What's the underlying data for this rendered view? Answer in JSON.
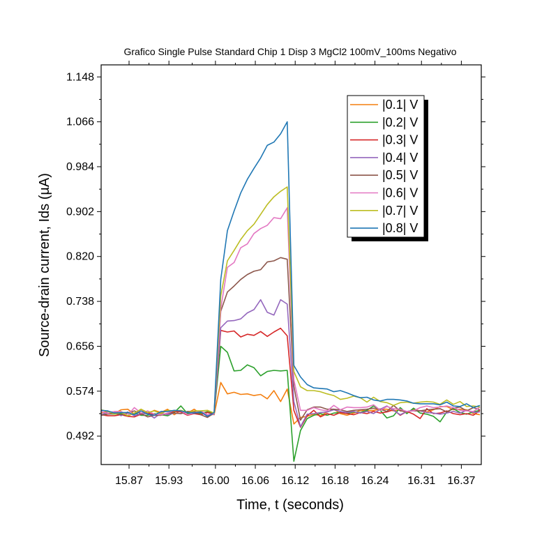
{
  "chart_data": {
    "type": "line",
    "title": "Grafico Single Pulse Standard Chip 1 Disp 3 MgCl2 100mV_100ms Negativo",
    "xlabel": "Time, t (seconds)",
    "ylabel": "Source-drain current, Ids (µA)",
    "xlim": [
      15.828,
      16.4
    ],
    "ylim": [
      0.44,
      1.17
    ],
    "xticks": [
      15.87,
      15.93,
      16.0,
      16.06,
      16.12,
      16.18,
      16.24,
      16.31,
      16.37
    ],
    "xtick_labels": [
      "15.87",
      "15.93",
      "16.00",
      "16.06",
      "16.12",
      "16.18",
      "16.24",
      "16.31",
      "16.37"
    ],
    "yticks": [
      0.492,
      0.574,
      0.656,
      0.738,
      0.82,
      0.902,
      0.984,
      1.066,
      1.148
    ],
    "ytick_labels": [
      "0.492",
      "0.574",
      "0.656",
      "0.738",
      "0.820",
      "0.902",
      "0.984",
      "1.066",
      "1.148"
    ],
    "grid": false,
    "legend_position": "top-right",
    "x": [
      15.828,
      15.838,
      15.848,
      15.858,
      15.868,
      15.878,
      15.888,
      15.898,
      15.908,
      15.918,
      15.928,
      15.938,
      15.948,
      15.958,
      15.968,
      15.978,
      15.988,
      15.998,
      16.008,
      16.018,
      16.028,
      16.038,
      16.048,
      16.058,
      16.068,
      16.078,
      16.088,
      16.098,
      16.108,
      16.118,
      16.128,
      16.138,
      16.148,
      16.158,
      16.168,
      16.178,
      16.188,
      16.198,
      16.208,
      16.218,
      16.228,
      16.238,
      16.248,
      16.258,
      16.268,
      16.278,
      16.288,
      16.298,
      16.308,
      16.318,
      16.328,
      16.338,
      16.348,
      16.358,
      16.368,
      16.378,
      16.388,
      16.398
    ],
    "series": [
      {
        "name": "|0.1| V",
        "color": "#f47f0f",
        "values": [
          0.534,
          0.538,
          0.533,
          0.54,
          0.541,
          0.532,
          0.541,
          0.533,
          0.539,
          0.535,
          0.541,
          0.531,
          0.539,
          0.534,
          0.541,
          0.532,
          0.537,
          0.531,
          0.59,
          0.569,
          0.572,
          0.568,
          0.569,
          0.566,
          0.568,
          0.56,
          0.575,
          0.555,
          0.578,
          0.514,
          0.526,
          0.528,
          0.532,
          0.529,
          0.536,
          0.541,
          0.533,
          0.53,
          0.534,
          0.539,
          0.538,
          0.539,
          0.541,
          0.541,
          0.538,
          0.54,
          0.534,
          0.541,
          0.538,
          0.536,
          0.54,
          0.546,
          0.546,
          0.54,
          0.541,
          0.54,
          0.533,
          0.531
        ]
      },
      {
        "name": "|0.2| V",
        "color": "#2ca02c",
        "values": [
          0.53,
          0.533,
          0.532,
          0.533,
          0.529,
          0.534,
          0.53,
          0.53,
          0.533,
          0.531,
          0.529,
          0.535,
          0.547,
          0.533,
          0.534,
          0.534,
          0.536,
          0.533,
          0.656,
          0.645,
          0.611,
          0.612,
          0.622,
          0.617,
          0.602,
          0.61,
          0.612,
          0.611,
          0.612,
          0.446,
          0.502,
          0.524,
          0.53,
          0.533,
          0.53,
          0.534,
          0.535,
          0.533,
          0.536,
          0.535,
          0.539,
          0.547,
          0.539,
          0.525,
          0.529,
          0.544,
          0.533,
          0.543,
          0.534,
          0.532,
          0.528,
          0.518,
          0.536,
          0.542,
          0.535,
          0.532,
          0.536,
          0.539
        ]
      },
      {
        "name": "|0.3| V",
        "color": "#d62728",
        "values": [
          0.531,
          0.529,
          0.529,
          0.531,
          0.528,
          0.527,
          0.532,
          0.534,
          0.531,
          0.532,
          0.533,
          0.537,
          0.536,
          0.53,
          0.533,
          0.531,
          0.535,
          0.532,
          0.685,
          0.682,
          0.684,
          0.673,
          0.678,
          0.676,
          0.683,
          0.674,
          0.682,
          0.689,
          0.675,
          0.539,
          0.508,
          0.529,
          0.539,
          0.527,
          0.533,
          0.53,
          0.535,
          0.533,
          0.531,
          0.535,
          0.533,
          0.537,
          0.534,
          0.536,
          0.54,
          0.53,
          0.537,
          0.532,
          0.524,
          0.542,
          0.533,
          0.534,
          0.538,
          0.533,
          0.531,
          0.533,
          0.53,
          0.539
        ]
      },
      {
        "name": "|0.4| V",
        "color": "#9467bd",
        "values": [
          0.531,
          0.536,
          0.536,
          0.529,
          0.536,
          0.529,
          0.533,
          0.533,
          0.525,
          0.534,
          0.531,
          0.534,
          0.533,
          0.536,
          0.535,
          0.537,
          0.529,
          0.532,
          0.69,
          0.702,
          0.703,
          0.706,
          0.717,
          0.723,
          0.741,
          0.718,
          0.713,
          0.741,
          0.733,
          0.555,
          0.509,
          0.532,
          0.533,
          0.535,
          0.536,
          0.54,
          0.537,
          0.535,
          0.537,
          0.534,
          0.537,
          0.533,
          0.541,
          0.547,
          0.539,
          0.531,
          0.537,
          0.539,
          0.538,
          0.535,
          0.534,
          0.532,
          0.534,
          0.537,
          0.534,
          0.539,
          0.535,
          0.536
        ]
      },
      {
        "name": "|0.5| V",
        "color": "#8c564b",
        "values": [
          0.53,
          0.532,
          0.533,
          0.531,
          0.534,
          0.538,
          0.533,
          0.527,
          0.53,
          0.53,
          0.534,
          0.534,
          0.533,
          0.537,
          0.537,
          0.531,
          0.526,
          0.534,
          0.72,
          0.755,
          0.766,
          0.778,
          0.787,
          0.793,
          0.796,
          0.81,
          0.812,
          0.818,
          0.815,
          0.583,
          0.521,
          0.54,
          0.545,
          0.545,
          0.541,
          0.541,
          0.54,
          0.537,
          0.539,
          0.54,
          0.541,
          0.543,
          0.541,
          0.537,
          0.548,
          0.538,
          0.537,
          0.538,
          0.538,
          0.54,
          0.541,
          0.542,
          0.536,
          0.543,
          0.545,
          0.538,
          0.544,
          0.54
        ]
      },
      {
        "name": "|0.6| V",
        "color": "#e377c2",
        "values": [
          0.537,
          0.533,
          0.537,
          0.537,
          0.53,
          0.544,
          0.534,
          0.538,
          0.532,
          0.531,
          0.534,
          0.539,
          0.538,
          0.531,
          0.534,
          0.538,
          0.531,
          0.533,
          0.725,
          0.8,
          0.809,
          0.836,
          0.843,
          0.862,
          0.871,
          0.877,
          0.891,
          0.889,
          0.909,
          0.595,
          0.539,
          0.539,
          0.544,
          0.54,
          0.538,
          0.548,
          0.54,
          0.545,
          0.544,
          0.544,
          0.545,
          0.549,
          0.539,
          0.546,
          0.542,
          0.541,
          0.537,
          0.538,
          0.544,
          0.547,
          0.544,
          0.545,
          0.547,
          0.544,
          0.539,
          0.538,
          0.537,
          0.545
        ]
      },
      {
        "name": "|0.7| V",
        "color": "#bcbd22",
        "values": [
          0.54,
          0.537,
          0.532,
          0.535,
          0.529,
          0.534,
          0.541,
          0.535,
          0.538,
          0.533,
          0.539,
          0.538,
          0.539,
          0.535,
          0.538,
          0.538,
          0.539,
          0.534,
          0.748,
          0.812,
          0.831,
          0.851,
          0.867,
          0.879,
          0.897,
          0.915,
          0.929,
          0.939,
          0.947,
          0.61,
          0.582,
          0.575,
          0.575,
          0.573,
          0.569,
          0.566,
          0.559,
          0.561,
          0.565,
          0.562,
          0.554,
          0.563,
          0.555,
          0.553,
          0.548,
          0.553,
          0.554,
          0.552,
          0.554,
          0.555,
          0.554,
          0.55,
          0.558,
          0.55,
          0.555,
          0.546,
          0.547,
          0.545
        ]
      },
      {
        "name": "|0.8| V",
        "color": "#1f77b4",
        "values": [
          0.539,
          0.538,
          0.534,
          0.535,
          0.535,
          0.531,
          0.538,
          0.532,
          0.53,
          0.537,
          0.537,
          0.539,
          0.538,
          0.535,
          0.534,
          0.536,
          0.528,
          0.535,
          0.778,
          0.867,
          0.903,
          0.936,
          0.961,
          0.981,
          1.0,
          1.023,
          1.029,
          1.044,
          1.066,
          0.621,
          0.6,
          0.586,
          0.58,
          0.579,
          0.578,
          0.573,
          0.575,
          0.571,
          0.566,
          0.562,
          0.563,
          0.558,
          0.556,
          0.559,
          0.559,
          0.558,
          0.556,
          0.552,
          0.551,
          0.551,
          0.551,
          0.549,
          0.554,
          0.547,
          0.546,
          0.551,
          0.544,
          0.548
        ]
      }
    ]
  }
}
